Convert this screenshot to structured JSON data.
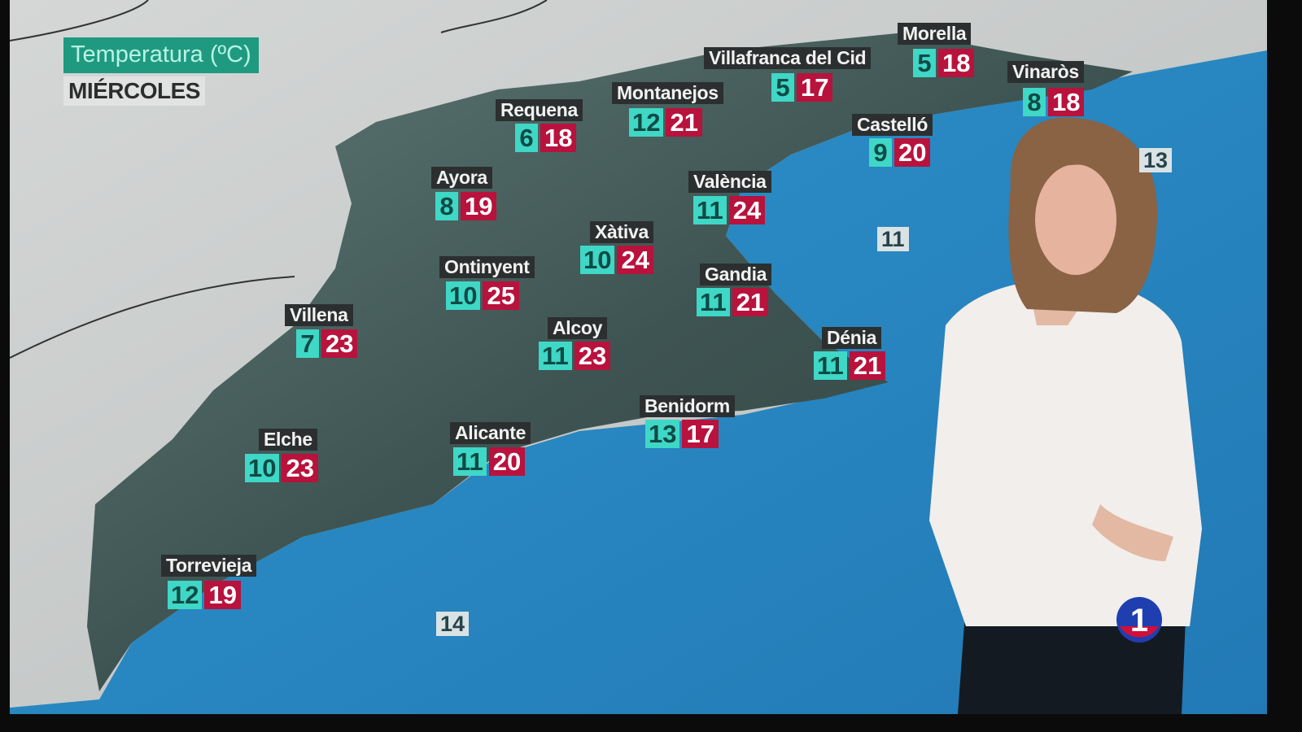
{
  "header": {
    "title": "Temperatura (ºC)",
    "day": "MIÉRCOLES"
  },
  "colors": {
    "min_box": "#3fd7c6",
    "max_box": "#b8123d",
    "title_box": "#1f9a80",
    "sea": "#2a8cc4"
  },
  "cities": [
    {
      "name": "Morella",
      "min": "5",
      "max": "18"
    },
    {
      "name": "Villafranca del Cid",
      "min": "5",
      "max": "17"
    },
    {
      "name": "Vinaròs",
      "min": "8",
      "max": "18"
    },
    {
      "name": "Montanejos",
      "min": "12",
      "max": "21"
    },
    {
      "name": "Requena",
      "min": "6",
      "max": "18"
    },
    {
      "name": "Castelló",
      "min": "9",
      "max": "20"
    },
    {
      "name": "Ayora",
      "min": "8",
      "max": "19"
    },
    {
      "name": "València",
      "min": "11",
      "max": "24"
    },
    {
      "name": "Xàtiva",
      "min": "10",
      "max": "24"
    },
    {
      "name": "Ontinyent",
      "min": "10",
      "max": "25"
    },
    {
      "name": "Gandia",
      "min": "11",
      "max": "21"
    },
    {
      "name": "Villena",
      "min": "7",
      "max": "23"
    },
    {
      "name": "Alcoy",
      "min": "11",
      "max": "23"
    },
    {
      "name": "Dénia",
      "min": "11",
      "max": "21"
    },
    {
      "name": "Benidorm",
      "min": "13",
      "max": "17"
    },
    {
      "name": "Elche",
      "min": "10",
      "max": "23"
    },
    {
      "name": "Alicante",
      "min": "11",
      "max": "20"
    },
    {
      "name": "Torrevieja",
      "min": "12",
      "max": "19"
    }
  ],
  "sea_temps": [
    "13",
    "11",
    "14"
  ],
  "channel_logo": "1"
}
